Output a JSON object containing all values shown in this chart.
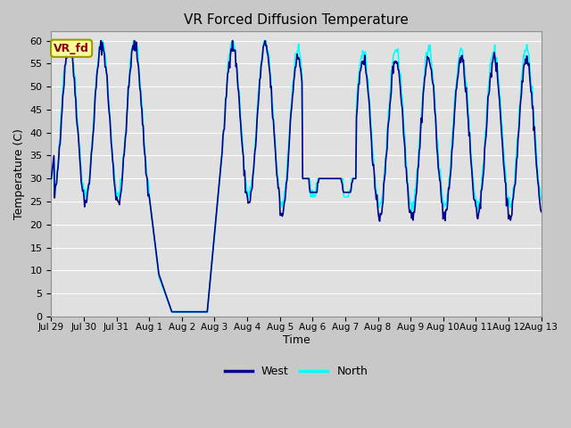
{
  "title": "VR Forced Diffusion Temperature",
  "ylabel": "Temperature (C)",
  "xlabel": "Time",
  "ylim": [
    0,
    62
  ],
  "yticks": [
    0,
    5,
    10,
    15,
    20,
    25,
    30,
    35,
    40,
    45,
    50,
    55,
    60
  ],
  "xtick_labels": [
    "Jul 29",
    "Jul 30",
    "Jul 31",
    "Aug 1",
    "Aug 2",
    "Aug 3",
    "Aug 4",
    "Aug 5",
    "Aug 6",
    "Aug 7",
    "Aug 8",
    "Aug 9",
    "Aug 10",
    "Aug 11",
    "Aug 12",
    "Aug 13"
  ],
  "west_color": "#00008B",
  "north_color": "#00FFFF",
  "legend_label_west": "West",
  "legend_label_north": "North",
  "annotation_text": "VR_fd",
  "annotation_color": "#8B0000",
  "annotation_bg": "#FFFF99",
  "fig_bg": "#C8C8C8",
  "plot_bg": "#E0E0E0",
  "grid_color": "#FFFFFF",
  "linewidth_west": 1.2,
  "linewidth_north": 1.2
}
